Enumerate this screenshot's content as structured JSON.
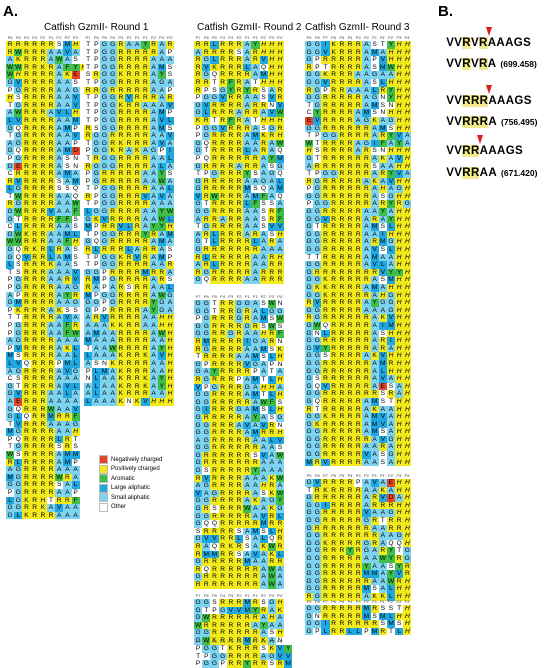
{
  "panels": {
    "a": "A.",
    "b": "B."
  },
  "titles": {
    "round1": "Catfish GzmII- Round 1",
    "round2": "Catfish GzmII- Round 2",
    "round3": "Catfish GzmII- Round 3"
  },
  "position_labels": {
    "p6": [
      "P6",
      "P5",
      "P4",
      "P3",
      "P2",
      "P1",
      "P1'",
      "P2'",
      "P3'"
    ],
    "p7": [
      "P7",
      "P6",
      "P5",
      "P4",
      "P3",
      "P2",
      "P1",
      "P1'",
      "P2'",
      "P3'",
      "P4'"
    ],
    "p9": [
      "P9",
      "P8",
      "P7",
      "P6",
      "P5",
      "P4",
      "P3",
      "P2",
      "P1",
      "P1'",
      "P2'",
      "P3'",
      "P4'"
    ]
  },
  "legend": [
    {
      "label": "Negatively charged",
      "color": "#e8462a"
    },
    {
      "label": "Positively charged",
      "color": "#f2ea1d"
    },
    {
      "label": "Aromatic",
      "color": "#3fbf4a"
    },
    {
      "label": "Large aliphatic",
      "color": "#22a8e0"
    },
    {
      "label": "Small aliphatic",
      "color": "#7ed3f0"
    },
    {
      "label": "Other",
      "color": "#ffffff"
    }
  ],
  "motifs": [
    {
      "line1": [
        "V",
        "V",
        "R",
        "V",
        "R",
        "A",
        "A",
        "A",
        "G",
        "S"
      ],
      "hl1": [
        2,
        4
      ],
      "cut1": 4,
      "line2": [
        "V",
        "V",
        "R",
        "V",
        "R",
        "A"
      ],
      "hl2": [
        2,
        4
      ],
      "mass": "(699.458)"
    },
    {
      "line1": [
        "V",
        "V",
        "R",
        "R",
        "R",
        "A",
        "A",
        "A",
        "G",
        "S"
      ],
      "hl1": [
        2,
        3,
        4
      ],
      "cut1": 4,
      "line2": [
        "V",
        "V",
        "R",
        "R",
        "R",
        "A"
      ],
      "hl2": [
        2,
        3,
        4
      ],
      "mass": "(756.495)"
    },
    {
      "line1": [
        "V",
        "V",
        "R",
        "R",
        "A",
        "A",
        "A",
        "G",
        "S"
      ],
      "hl1": [
        2,
        3
      ],
      "cut1": 3,
      "line2": [
        "V",
        "V",
        "R",
        "R",
        "A",
        "A"
      ],
      "hl2": [
        2,
        3
      ],
      "mass": "(671.420)"
    }
  ],
  "alignments": {
    "round1_a": [
      "RRRRRRSMH",
      "RWRRRAAVA",
      "AKRRRAWAS",
      "WWRRKRAFYH",
      "WHRRRRAKE",
      "GVRRRRAAS",
      "PGRRRRAAG",
      "HSRRRRAAV",
      "TGRRRRAAV",
      "AWRRRAVLH",
      "LVRRRRAAM",
      "GQRRRRAMP",
      "TGRRRRAAV",
      "AGRRRRAAP",
      "GQRRRRAMD",
      "PGRRRRASN",
      "GERRRRASN",
      "CRRRRRAMA",
      "RVRRRRSAM",
      "LGRRRRSSQ",
      "TWRRRRAAQ",
      "RGRRRRAAW",
      "GWRRRVAAF",
      "GTRRRRFFS",
      "CLRRRRAAS",
      "GWKRRAAML",
      "WWRRRAAFH",
      "GQRKRLRAS",
      "GQVRRLAMS",
      "LSRRRKAAS",
      "TSRRRAAAV",
      "PGRRRAARV",
      "PGRRRRAAG",
      "APRRRRAYR",
      "GMRRRRAAG",
      "PKRRRAKSS",
      "TTRRRRAVA",
      "PGRRRAAFR",
      "PGRRRAAFW",
      "AGRRRRAAA",
      "PVRRRRAKL",
      "MSRRRRAAL",
      "LVQRRRPML",
      "AGRRRRAVG",
      "CSRRRRAAA",
      "GTRRRRAVL",
      "GVRRRAALA",
      "AERRRAAAA",
      "GQRRRWAAV",
      "GLQRRMRRF",
      "TVRRRAAAG",
      "MGRRRRAAH",
      "PQRRRRLRT",
      "TGRRRRSRS",
      "WSRRRRAMM",
      "RLRRRRAMP",
      "AGRRRRAAA",
      "MGRRRRWRA",
      "GGRRRRSAL",
      "PGRRRRAAP",
      "LGKRHTRRF",
      "GGRRKAVAA",
      "GLKRRRAAA"
    ],
    "round1_b": [
      "TPGGRAAYRAR",
      "TPGGRRRRRAP",
      "TPGGRRRRAAA",
      "TPGGRRRRAMS",
      "SRGGKRRRAYS",
      "TPGGRRRRAGA",
      "RRGRRRRRAAP",
      "TPGGRVRRRAR",
      "TPGGKRRAAAV",
      "TPGGRRRRAMP",
      "TPGGRRRRAVL",
      "RSGGRRRRAMS",
      "RGGRRRRRAAV",
      "TGGRKRRRAVA",
      "PGGKRAKAGPI",
      "TRGGRRRRAAL",
      "RGGGRRRRALA",
      "PGRRRRRAAYS",
      "PGRRRRRAAWA",
      "TPGGRRRRAAL",
      "RPGGRRRVAVA",
      "TPGGRRRRAAA",
      "LGGRRRRAAYW",
      "GKVRRRRAAWL",
      "MPRRVLRAYYH",
      "TPGGRRRYRAM",
      "GQGRRRRRAMA",
      "RLRRRLARRAS",
      "TPGGKRVRAMP",
      "TPGGRRRRAAR",
      "GGPRRRRMRRA",
      "RMPGRRRRARS",
      "RAPARSRRAAL",
      "MPGGRRRRAWG",
      "GGPGRRRRYGA",
      "GPPRRRRAYGA",
      "ARVRRRRAAHH",
      "AAAKKRRAAHH",
      "AMAARRRRAWH",
      "MAAARRRRAAH",
      "TAAWRRRRAYH",
      "LAAAKRRKAVH",
      "ASNKRRRRAAH",
      "PLMAKRRRAAH",
      "NLAAKRRKAYH",
      "ALAAKRRKAYH",
      "ALAAKRRRAAH",
      "LAAAKNKVHHH"
    ],
    "round2_a": [
      "RRLRRRAYHHH",
      "ARRRRSARHHH",
      "RGLRRRARVHH",
      "RVKRRRLAQHH",
      "RGQRRRRAMHH",
      "RRTRFRATHHH",
      "RPSGYRYRSAR",
      "PGGVRRAASVR",
      "GVRRRRARRNV",
      "GLRRRARRAVW",
      "KRTRFRATHHH",
      "PGGVRRRASGR",
      "PGRRRRAMKRH",
      "GQRRRRAARAW",
      "GTRRRRLARAQ",
      "PQRRRRRRAYM",
      "GRRRRARRASG",
      "TPGRRRYSAGQ",
      "GRRRRRAAGAL",
      "GRRRRRMSQAM",
      "VRWRRRAMFAQ",
      "GTRRRRLFSSA",
      "GGRRRRAASRF",
      "ARRARRAASRF",
      "TGRRRRAASVV",
      "ARLRRRARASH",
      "GTLRRRRLARA",
      "GRRRRRRRAAA",
      "RLRRRRRAARH",
      "ARLRRRRAARR",
      "RGRRRRRARRR",
      "GQRRRRAARRR"
    ],
    "round2_b": [
      "GGTRRGGASWN",
      "GGTRRGRALGG",
      "PGRRRGRAMSW",
      "GGRRRRGRSWS",
      "GGRRGRAAHRF",
      "RMRRRRIGARN",
      "RGRRRRAAMSK",
      "TRRRRAAMSLH",
      "GPRRRRVGAPN",
      "GAYRRRRPATA",
      "RGRRRPAMTLH",
      "VPGRRRGAHHA",
      "GGRRRRAMTLH",
      "GGRRRRRAWFS",
      "GIRRRGAMSLH",
      "GRRRRRAYASG",
      "GGRRRAVAVRN",
      "GGRRRRAMRRH",
      "AGRRRRRAALV",
      "GGRRRRRRAAS",
      "GRRRRRRSVAW",
      "GRRRRRRRAAA",
      "GSRRRRRYAAA",
      "RVRRRRAAAKW",
      "AGRRRRAAHRA",
      "VAGRRRRASKW",
      "GGRRRRAKAGY",
      "GRSRRRWAAKG",
      "GGRRRRRAVRL",
      "GQQRRRRRMRR",
      "SRRRRSAMSLH",
      "GVVRRLSALQR",
      "RAQRKRSAKWR",
      "RMMRRSAVAKL",
      "GRRRRRMAARR",
      "RQRRRRRRAWA",
      "GRRRRRRRAWA",
      "RRRRRRRRAWA"
    ],
    "round2_c": [
      "GGSRRRMRSGH",
      "GTPGVVMYRAK",
      "GWRRRRRRAHA",
      "WRRRRRRAYAA",
      "GGRRRRRRASH",
      "GWKRRRMRKAN"
    ],
    "round2_d": [
      "PGGTKRRRSKVY",
      "TPGGRRRRAGVV",
      "PGGPRRYRRSRM"
    ],
    "round3_a": [
      "GGIKRRRASTYHH",
      "GGVKRRRAMAHHH",
      "GPRRRRRAPVHHH",
      "RPTRRRRASMWHH",
      "GGKRRRAAGAAHH",
      "GGVRRRRASLHHH",
      "RGPRRAAALRYHH",
      "GGRRRRRAGNYHH",
      "TGRRRRRAMSNHH",
      "CYRRRRAMSNHHH",
      "EVRRRRAGKAGHH",
      "GGRRRRRRAMSHH",
      "TPGGRRRRARYVA",
      "WTRRRRAGIFAYA",
      "HSRRRRARSNHHH",
      "GTRRRRRRAKAVH",
      "ARRRRRRRSAAHH",
      "TPGGRRRRARYVA",
      "RGRRRRRAKAVHH",
      "PGRRRRRRAHAGH",
      "GGRRRRRRASGHH",
      "PGGRRRRRARYRG",
      "GGRRRRRAAYAHH",
      "GGVRRRRARAYHH",
      "GTRRRRRAMSLHH",
      "GGRRRRRAAIHHH",
      "GGRRRRRARMGHH",
      "GGRRRRRAVSLHH",
      "TTRRRRRAMAAHH",
      "GGRRRRRAVLAHH",
      "GRRRRRRRRVYYH",
      "GGKRRRRRASMHH",
      "GKKRRRRAMAHHH",
      "GGKRRRRRAHGHH",
      "RVRRRRRAYGGHH",
      "GGRRRRRAAAGHH",
      "RGRRRRRRAKVHH",
      "GWQRRRRRAIMHH",
      "GNLRRRRRASHHH",
      "GGRRRRRRARIHH",
      "GVYRRRRRARAHH",
      "GGSRRRRAKVHHH",
      "GGRRRRRRAMRHH",
      "GGRRRRRRALHHH",
      "GSRRRRRRAVAHH",
      "GQVRRRRRAESAH",
      "GGRRRRRRRSRAH",
      "GQRRRRRAMSTHH",
      "RTRRRRRAKAAHH",
      "GGKRRRRAMVAHH",
      "GKRRRRRAMVAHH",
      "GGRRRRRAMSAHH",
      "GGRRRRRRAVGHH",
      "GGRRRRRAARAHH",
      "GGRRRRRVASGHH",
      "MRVRRRRAASAHH"
    ],
    "round3_b": [
      "GVRRRRPAVAEHH",
      "TRKRRRRAAKAHH",
      "GRRRRRRARVDAH",
      "GGIRRRRARRRHH",
      "GGRRRRRVAAGHH",
      "GGRRRRRGRTRRH",
      "GRRRRRRRAARRH",
      "GGRRRRRRRAAGH",
      "GGKRRRRGRAQQH",
      "GGRRRYRGARYTG",
      "GGRRRRRAAWYRG",
      "GGRRRRRYAASYR",
      "GGRRRRRMMAYVR",
      "GGRRRRRRAAWRH",
      "GGRRRRRMSALHH",
      "RGRRRRRAKKLHH"
    ],
    "round3_c": [
      "GGRRRRRMRSSTH",
      "GNRRRRRMSMLHH",
      "GGIRRRRRRSMSH",
      "GPLRRLLPMRTLH"
    ]
  }
}
